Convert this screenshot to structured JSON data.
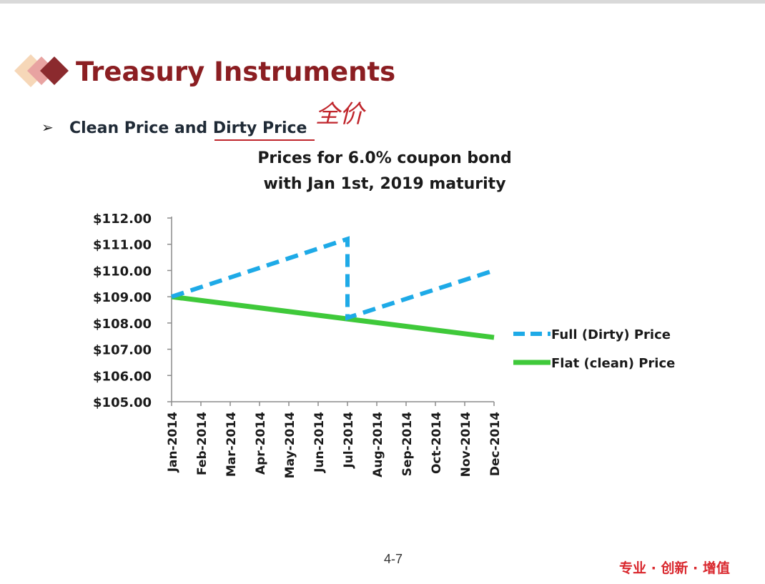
{
  "slide": {
    "title": "Treasury Instruments",
    "bullet_glyph": "➢",
    "subtitle_part1": "Clean Price and ",
    "subtitle_part2": "Dirty Price",
    "annotation": "全价",
    "page_number": "4-7",
    "slogan": "专业 · 创新 · 增值",
    "logo_icon": "diamond-logo-icon",
    "colors": {
      "title": "#8b1e22",
      "logo_dark": "#8b2a2e",
      "logo_mid": "#e8a3a1",
      "logo_light": "#f6d7b8",
      "slogan": "#d9272d"
    }
  },
  "chart_data": {
    "type": "line",
    "title_line1": "Prices for 6.0% coupon  bond",
    "title_line2": "with Jan 1st, 2019 maturity",
    "categories": [
      "Jan-2014",
      "Feb-2014",
      "Mar-2014",
      "Apr-2014",
      "May-2014",
      "Jun-2014",
      "Jul-2014",
      "Aug-2014",
      "Sep-2014",
      "Oct-2014",
      "Nov-2014",
      "Dec-2014"
    ],
    "y_ticks": [
      "$105.00",
      "$106.00",
      "$107.00",
      "$108.00",
      "$109.00",
      "$110.00",
      "$111.00",
      "$112.00"
    ],
    "ylim": [
      105,
      112
    ],
    "grid": false,
    "legend_position": "right",
    "series": [
      {
        "name": "Full (Dirty) Price",
        "style": "dashed",
        "color": "#1eaae7",
        "points": [
          {
            "x": 0,
            "y": 109.0
          },
          {
            "x": 6,
            "y": 111.2
          },
          {
            "x": 6,
            "y": 108.2
          },
          {
            "x": 11,
            "y": 110.0
          }
        ]
      },
      {
        "name": "Flat (clean) Price",
        "style": "solid",
        "color": "#3fc93a",
        "points": [
          {
            "x": 0,
            "y": 109.0
          },
          {
            "x": 11,
            "y": 107.45
          }
        ]
      }
    ]
  }
}
